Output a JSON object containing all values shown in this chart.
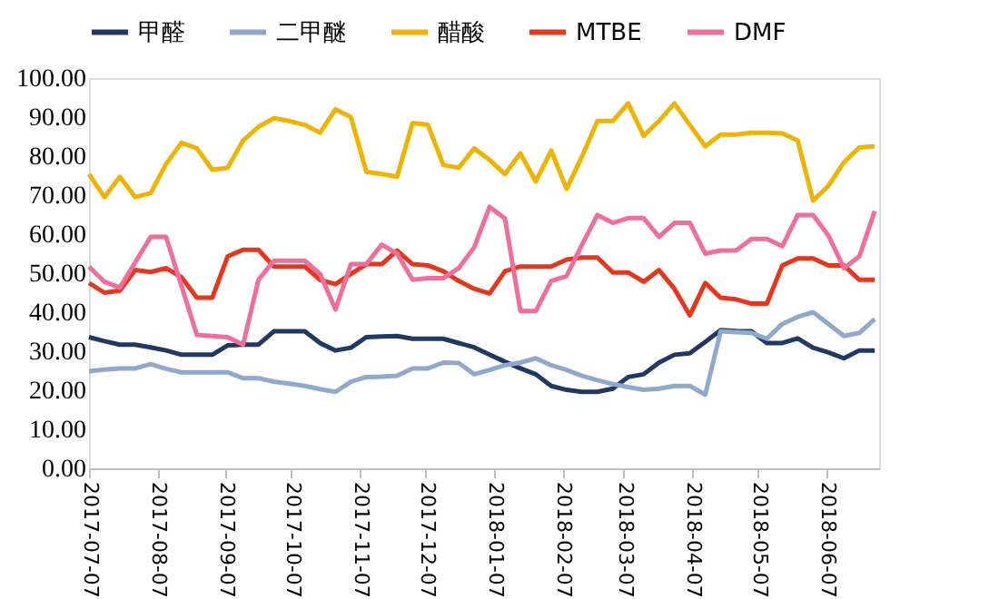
{
  "chart_data": {
    "type": "line",
    "x": [
      "2017-07-07",
      "2017-07-14",
      "2017-07-21",
      "2017-07-28",
      "2017-08-04",
      "2017-08-11",
      "2017-08-18",
      "2017-08-25",
      "2017-09-01",
      "2017-09-08",
      "2017-09-15",
      "2017-09-22",
      "2017-09-29",
      "2017-10-06",
      "2017-10-13",
      "2017-10-20",
      "2017-10-27",
      "2017-11-03",
      "2017-11-10",
      "2017-11-17",
      "2017-11-24",
      "2017-12-01",
      "2017-12-08",
      "2017-12-15",
      "2017-12-22",
      "2017-12-29",
      "2018-01-05",
      "2018-01-12",
      "2018-01-19",
      "2018-01-26",
      "2018-02-02",
      "2018-02-09",
      "2018-02-16",
      "2018-02-23",
      "2018-03-02",
      "2018-03-09",
      "2018-03-16",
      "2018-03-23",
      "2018-03-30",
      "2018-04-06",
      "2018-04-13",
      "2018-04-20",
      "2018-04-27",
      "2018-05-04",
      "2018-05-11",
      "2018-05-18",
      "2018-05-25",
      "2018-06-01",
      "2018-06-08",
      "2018-06-15",
      "2018-06-22",
      "2018-06-29"
    ],
    "series": [
      {
        "name": "甲醛",
        "color": "#1f3864",
        "values": [
          33.6,
          32.6,
          31.7,
          31.7,
          31,
          30.2,
          29.1,
          29.1,
          29.1,
          31.5,
          31.7,
          31.7,
          35.1,
          35.1,
          35.1,
          32.1,
          30.2,
          30.9,
          33.6,
          33.8,
          33.9,
          33.2,
          33.2,
          33.2,
          32.1,
          31,
          29.1,
          27.3,
          25.6,
          24.1,
          21.1,
          20.1,
          19.6,
          19.6,
          20.4,
          23.4,
          24.1,
          27.1,
          29.1,
          29.5,
          32.4,
          35.4,
          35.2,
          35.1,
          32.1,
          32.1,
          33.3,
          30.9,
          29.7,
          28.2,
          30.2,
          30.2
        ]
      },
      {
        "name": "二甲醚",
        "color": "#8ea9cd",
        "values": [
          24.9,
          25.3,
          25.6,
          25.6,
          26.7,
          25.5,
          24.6,
          24.6,
          24.6,
          24.6,
          23.1,
          23.1,
          22.2,
          21.7,
          21.1,
          20.3,
          19.6,
          22.2,
          23.4,
          23.5,
          23.7,
          25.6,
          25.6,
          27.1,
          27,
          24.1,
          25.2,
          26.4,
          27.1,
          28.2,
          26.4,
          25.2,
          23.7,
          22.6,
          21.6,
          20.8,
          20.1,
          20.4,
          21.1,
          21.1,
          18.9,
          35.1,
          34.9,
          34.7,
          33.2,
          37,
          38.8,
          40,
          37,
          33.9,
          34.7,
          38.2
        ]
      },
      {
        "name": "醋酸",
        "color": "#f0b400",
        "values": [
          75.4,
          69.5,
          74.7,
          69.5,
          70.5,
          78,
          83.4,
          82,
          76.5,
          77,
          84,
          87.5,
          89.7,
          89,
          88,
          86,
          92,
          90,
          76,
          75.4,
          74.7,
          88.5,
          88,
          77.7,
          77,
          82,
          79,
          75.4,
          80.7,
          73.5,
          81.4,
          71.6,
          79.9,
          89,
          89,
          93.5,
          85.2,
          89,
          93.5,
          88,
          82.5,
          85.5,
          85.5,
          86,
          86,
          85.8,
          84,
          68.6,
          72.4,
          78.4,
          82.2,
          82.5
        ]
      },
      {
        "name": "MTBE",
        "color": "#e8361c",
        "values": [
          47.5,
          45,
          45.5,
          50.8,
          50.3,
          51.3,
          49,
          43.7,
          43.7,
          54.3,
          56,
          56,
          51.7,
          51.7,
          51.7,
          48.3,
          47.2,
          49.8,
          52.3,
          52.3,
          55.8,
          52.3,
          52,
          50.5,
          48,
          46,
          44.8,
          50.5,
          51.7,
          51.7,
          51.7,
          53.5,
          54,
          54,
          50.2,
          50.2,
          47.8,
          50.8,
          46,
          39.2,
          47.5,
          43.7,
          43.3,
          42.2,
          42.2,
          52,
          53.8,
          53.8,
          52,
          52,
          48.3,
          48.3
        ]
      },
      {
        "name": "DMF",
        "color": "#f06e9b",
        "values": [
          51.7,
          47.8,
          46.3,
          52.8,
          59.3,
          59.3,
          46.8,
          34.2,
          33.9,
          33.6,
          31.7,
          48.3,
          53.2,
          53.2,
          53.2,
          49.8,
          40.7,
          52.3,
          52.3,
          57.3,
          55,
          48.3,
          48.7,
          48.7,
          51.3,
          56.6,
          67,
          64,
          40.3,
          40.3,
          48,
          49.3,
          57.3,
          64.9,
          62.9,
          64.1,
          64.1,
          59.3,
          62.9,
          62.9,
          55,
          55.8,
          55.8,
          58.8,
          58.8,
          56.9,
          64.9,
          64.9,
          59.6,
          51.3,
          54.3,
          65.9
        ]
      }
    ],
    "xlim": [
      "2017-07-07",
      "2018-07-01"
    ],
    "xticks": [
      {
        "value": "2017-07-07",
        "label": "2017-07-07"
      },
      {
        "value": "2017-08-07",
        "label": "2017-08-07"
      },
      {
        "value": "2017-09-07",
        "label": "2017-09-07"
      },
      {
        "value": "2017-10-07",
        "label": "2017-10-07"
      },
      {
        "value": "2017-11-07",
        "label": "2017-11-07"
      },
      {
        "value": "2017-12-07",
        "label": "2017-12-07"
      },
      {
        "value": "2018-01-07",
        "label": "2018-01-07"
      },
      {
        "value": "2018-02-07",
        "label": "2018-02-07"
      },
      {
        "value": "2018-03-07",
        "label": "2018-03-07"
      },
      {
        "value": "2018-04-07",
        "label": "2018-04-07"
      },
      {
        "value": "2018-05-07",
        "label": "2018-05-07"
      },
      {
        "value": "2018-06-07",
        "label": "2018-06-07"
      }
    ],
    "ylim": [
      0,
      100
    ],
    "yticks": [
      {
        "value": 0,
        "label": "0.00"
      },
      {
        "value": 10,
        "label": "10.00"
      },
      {
        "value": 20,
        "label": "20.00"
      },
      {
        "value": 30,
        "label": "30.00"
      },
      {
        "value": 40,
        "label": "40.00"
      },
      {
        "value": 50,
        "label": "50.00"
      },
      {
        "value": 60,
        "label": "60.00"
      },
      {
        "value": 70,
        "label": "70.00"
      },
      {
        "value": 80,
        "label": "80.00"
      },
      {
        "value": 90,
        "label": "90.00"
      },
      {
        "value": 100,
        "label": "100.00"
      }
    ],
    "grid": false,
    "legend": "top",
    "marker": "none",
    "line_style": "solid"
  }
}
